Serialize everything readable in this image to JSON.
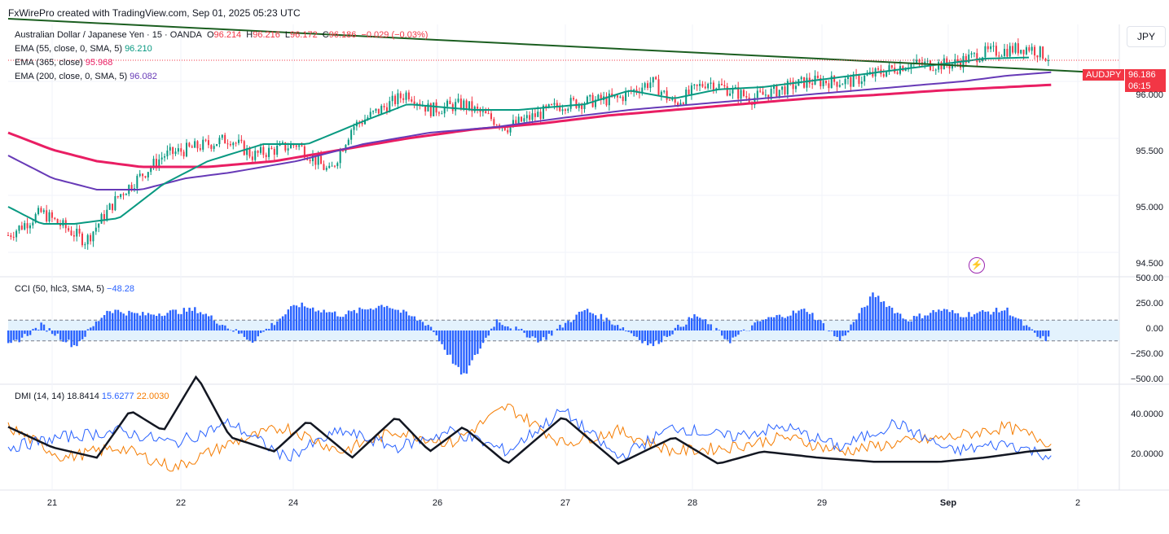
{
  "header": {
    "text": "FxWirePro created with TradingView.com, Sep 01, 2025 05:23 UTC"
  },
  "currency_button": "JPY",
  "price_tag": {
    "symbol": "AUDJPY",
    "price": "96.186",
    "countdown": "06:15"
  },
  "legend": {
    "symbol": "Australian Dollar / Japanese Yen · 15 · OANDA",
    "o_label": "O",
    "o": "96.214",
    "h_label": "H",
    "h": "96.216",
    "l_label": "L",
    "l": "96.172",
    "c_label": "C",
    "c": "96.186",
    "chg": "−0.029 (−0.03%)",
    "ema55": {
      "label": "EMA (55, close, 0, SMA, 5)",
      "value": "96.210"
    },
    "ema365": {
      "label": "EMA (365, close)",
      "value": "95.968"
    },
    "ema200": {
      "label": "EMA (200, close, 0, SMA, 5)",
      "value": "96.082"
    },
    "cci": {
      "label": "CCI (50, hlc3, SMA, 5)",
      "value": "−48.28"
    },
    "dmi": {
      "label": "DMI (14, 14)",
      "adx": "18.8414",
      "plus": "15.6277",
      "minus": "22.0030"
    }
  },
  "colors": {
    "up": "#089981",
    "down": "#f23645",
    "ema55": "#089981",
    "ema365": "#e91e63",
    "ema200": "#673ab7",
    "trend": "#1b5e20",
    "cci": "#2962ff",
    "adx": "#131722",
    "plus_di": "#2962ff",
    "minus_di": "#f57c00"
  },
  "axes": {
    "price_ticks": [
      "96.000",
      "95.500",
      "95.000",
      "94.500"
    ],
    "cci_ticks": [
      "500.00",
      "250.00",
      "0.00",
      "−250.00",
      "−500.00"
    ],
    "dmi_ticks": [
      "40.0000",
      "20.0000"
    ],
    "x_ticks": [
      "21",
      "22",
      "24",
      "26",
      "27",
      "28",
      "29",
      "Sep",
      "2"
    ]
  },
  "chart_data": [
    {
      "type": "candlestick",
      "title": "Australian Dollar / Japanese Yen · 15 · OANDA",
      "ylim": [
        94.3,
        96.5
      ],
      "price_path": [
        [
          0,
          94.65
        ],
        [
          0.03,
          94.85
        ],
        [
          0.07,
          94.6
        ],
        [
          0.1,
          95.0
        ],
        [
          0.14,
          95.35
        ],
        [
          0.2,
          95.5
        ],
        [
          0.22,
          95.35
        ],
        [
          0.26,
          95.45
        ],
        [
          0.29,
          95.2
        ],
        [
          0.31,
          95.6
        ],
        [
          0.36,
          95.9
        ],
        [
          0.38,
          95.75
        ],
        [
          0.41,
          95.8
        ],
        [
          0.45,
          95.6
        ],
        [
          0.5,
          95.8
        ],
        [
          0.55,
          95.85
        ],
        [
          0.58,
          96.0
        ],
        [
          0.6,
          95.8
        ],
        [
          0.63,
          96.0
        ],
        [
          0.67,
          95.85
        ],
        [
          0.72,
          96.0
        ],
        [
          0.76,
          96.0
        ],
        [
          0.81,
          96.15
        ],
        [
          0.85,
          96.15
        ],
        [
          0.88,
          96.25
        ],
        [
          0.92,
          96.3
        ],
        [
          0.94,
          96.2
        ]
      ],
      "ema55": [
        [
          0,
          94.9
        ],
        [
          0.03,
          94.75
        ],
        [
          0.06,
          94.75
        ],
        [
          0.1,
          94.8
        ],
        [
          0.14,
          95.1
        ],
        [
          0.18,
          95.3
        ],
        [
          0.23,
          95.45
        ],
        [
          0.27,
          95.45
        ],
        [
          0.32,
          95.65
        ],
        [
          0.36,
          95.8
        ],
        [
          0.42,
          95.75
        ],
        [
          0.46,
          95.75
        ],
        [
          0.52,
          95.8
        ],
        [
          0.56,
          95.92
        ],
        [
          0.6,
          95.85
        ],
        [
          0.64,
          95.93
        ],
        [
          0.68,
          95.95
        ],
        [
          0.72,
          96.0
        ],
        [
          0.76,
          96.05
        ],
        [
          0.8,
          96.1
        ],
        [
          0.84,
          96.15
        ],
        [
          0.88,
          96.2
        ],
        [
          0.92,
          96.21
        ]
      ],
      "ema200": [
        [
          0,
          95.35
        ],
        [
          0.04,
          95.15
        ],
        [
          0.08,
          95.05
        ],
        [
          0.12,
          95.05
        ],
        [
          0.16,
          95.15
        ],
        [
          0.2,
          95.2
        ],
        [
          0.26,
          95.3
        ],
        [
          0.32,
          95.45
        ],
        [
          0.38,
          95.55
        ],
        [
          0.44,
          95.6
        ],
        [
          0.5,
          95.68
        ],
        [
          0.56,
          95.75
        ],
        [
          0.62,
          95.8
        ],
        [
          0.68,
          95.85
        ],
        [
          0.74,
          95.9
        ],
        [
          0.8,
          95.95
        ],
        [
          0.86,
          96.0
        ],
        [
          0.9,
          96.05
        ],
        [
          0.94,
          96.08
        ]
      ],
      "ema365": [
        [
          0,
          95.55
        ],
        [
          0.04,
          95.4
        ],
        [
          0.08,
          95.3
        ],
        [
          0.12,
          95.25
        ],
        [
          0.18,
          95.25
        ],
        [
          0.24,
          95.3
        ],
        [
          0.3,
          95.4
        ],
        [
          0.36,
          95.5
        ],
        [
          0.42,
          95.58
        ],
        [
          0.48,
          95.63
        ],
        [
          0.54,
          95.7
        ],
        [
          0.6,
          95.75
        ],
        [
          0.66,
          95.8
        ],
        [
          0.72,
          95.85
        ],
        [
          0.78,
          95.88
        ],
        [
          0.84,
          95.92
        ],
        [
          0.9,
          95.95
        ],
        [
          0.94,
          95.97
        ]
      ],
      "trendline": [
        [
          0,
          96.55
        ],
        [
          1,
          96.07
        ]
      ]
    },
    {
      "type": "bar",
      "title": "CCI (50, hlc3, SMA, 5)",
      "ylim": [
        -500,
        500
      ],
      "bands": [
        100,
        -100
      ],
      "path": [
        [
          0,
          -150
        ],
        [
          0.03,
          50
        ],
        [
          0.06,
          -150
        ],
        [
          0.09,
          200
        ],
        [
          0.12,
          150
        ],
        [
          0.17,
          200
        ],
        [
          0.22,
          -100
        ],
        [
          0.26,
          250
        ],
        [
          0.3,
          150
        ],
        [
          0.34,
          250
        ],
        [
          0.38,
          50
        ],
        [
          0.41,
          -450
        ],
        [
          0.44,
          100
        ],
        [
          0.48,
          -100
        ],
        [
          0.52,
          200
        ],
        [
          0.55,
          50
        ],
        [
          0.58,
          -150
        ],
        [
          0.62,
          150
        ],
        [
          0.65,
          -100
        ],
        [
          0.68,
          100
        ],
        [
          0.72,
          200
        ],
        [
          0.75,
          -100
        ],
        [
          0.78,
          350
        ],
        [
          0.81,
          100
        ],
        [
          0.84,
          200
        ],
        [
          0.86,
          150
        ],
        [
          0.9,
          200
        ],
        [
          0.93,
          -80
        ]
      ]
    },
    {
      "type": "line",
      "title": "DMI (14, 14)",
      "ylim": [
        0,
        50
      ],
      "adx": [
        [
          0,
          30
        ],
        [
          0.04,
          20
        ],
        [
          0.08,
          15
        ],
        [
          0.11,
          38
        ],
        [
          0.14,
          28
        ],
        [
          0.17,
          55
        ],
        [
          0.2,
          25
        ],
        [
          0.24,
          18
        ],
        [
          0.27,
          33
        ],
        [
          0.31,
          15
        ],
        [
          0.35,
          35
        ],
        [
          0.38,
          18
        ],
        [
          0.41,
          30
        ],
        [
          0.45,
          12
        ],
        [
          0.5,
          35
        ],
        [
          0.55,
          12
        ],
        [
          0.6,
          25
        ],
        [
          0.64,
          12
        ],
        [
          0.68,
          18
        ],
        [
          0.73,
          15
        ],
        [
          0.78,
          13
        ],
        [
          0.84,
          13
        ],
        [
          0.88,
          15
        ],
        [
          0.92,
          18
        ],
        [
          0.94,
          18.84
        ]
      ],
      "plus_di": [
        [
          0,
          20
        ],
        [
          0.05,
          25
        ],
        [
          0.1,
          28
        ],
        [
          0.15,
          22
        ],
        [
          0.2,
          32
        ],
        [
          0.25,
          15
        ],
        [
          0.3,
          28
        ],
        [
          0.35,
          20
        ],
        [
          0.4,
          28
        ],
        [
          0.45,
          18
        ],
        [
          0.5,
          38
        ],
        [
          0.55,
          15
        ],
        [
          0.6,
          30
        ],
        [
          0.65,
          25
        ],
        [
          0.7,
          30
        ],
        [
          0.75,
          20
        ],
        [
          0.8,
          32
        ],
        [
          0.85,
          18
        ],
        [
          0.9,
          22
        ],
        [
          0.94,
          15.63
        ]
      ],
      "minus_di": [
        [
          0,
          30
        ],
        [
          0.05,
          15
        ],
        [
          0.1,
          20
        ],
        [
          0.15,
          10
        ],
        [
          0.2,
          22
        ],
        [
          0.25,
          30
        ],
        [
          0.3,
          18
        ],
        [
          0.35,
          28
        ],
        [
          0.4,
          22
        ],
        [
          0.45,
          40
        ],
        [
          0.5,
          22
        ],
        [
          0.55,
          28
        ],
        [
          0.6,
          18
        ],
        [
          0.65,
          20
        ],
        [
          0.7,
          25
        ],
        [
          0.75,
          18
        ],
        [
          0.8,
          22
        ],
        [
          0.85,
          25
        ],
        [
          0.9,
          30
        ],
        [
          0.94,
          22.0
        ]
      ]
    }
  ]
}
